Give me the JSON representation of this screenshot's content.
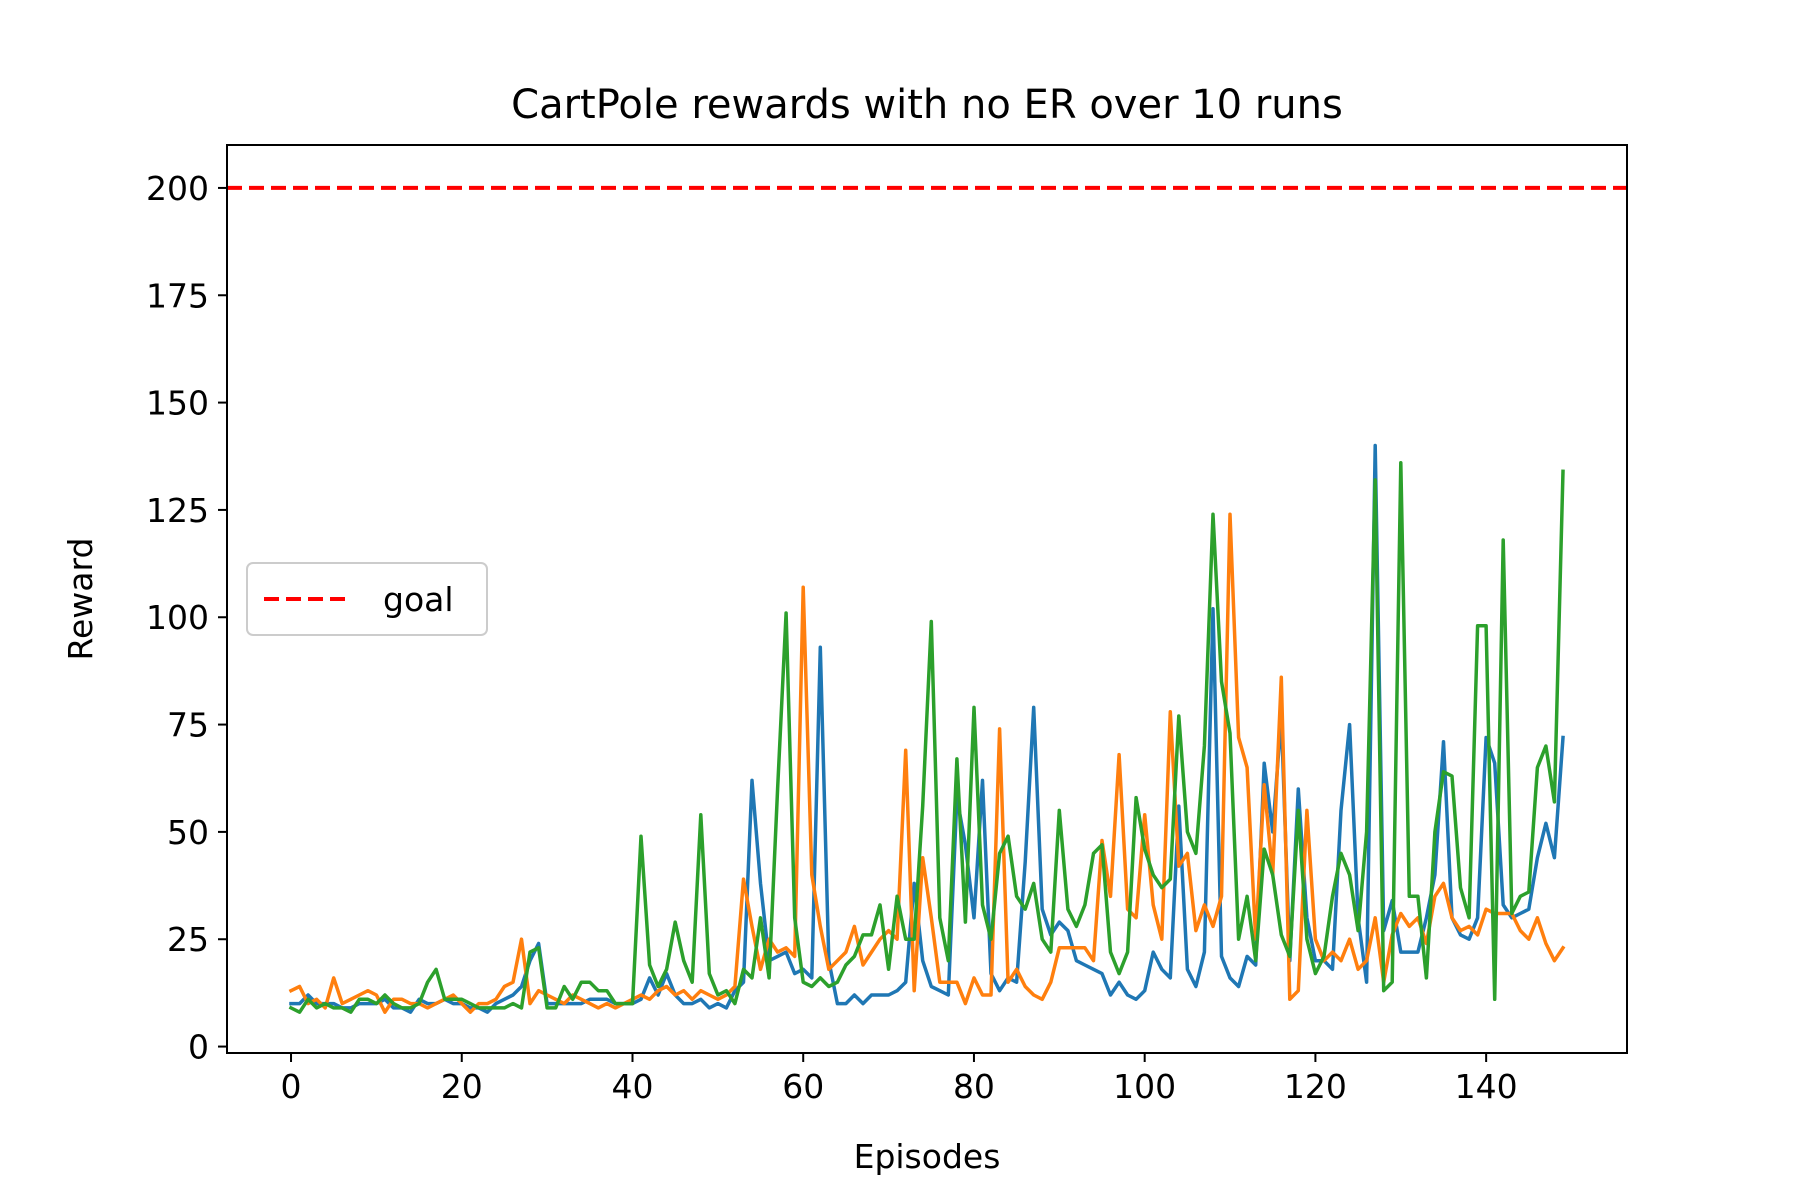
{
  "chart_data": {
    "type": "line",
    "title": "CartPole rewards with no ER over 10 runs",
    "xlabel": "Episodes",
    "ylabel": "Reward",
    "xlim": [
      -7.5,
      156.5
    ],
    "ylim": [
      -1.5,
      210
    ],
    "xticks": [
      0,
      20,
      40,
      60,
      80,
      100,
      120,
      140
    ],
    "yticks": [
      0,
      25,
      50,
      75,
      100,
      125,
      150,
      175,
      200
    ],
    "grid": false,
    "legend": {
      "placement": "center-left",
      "entries": [
        {
          "name": "goal",
          "style": "dashed",
          "color": "#ff0000"
        }
      ]
    },
    "goal_line": {
      "y": 200,
      "color": "#ff0000",
      "style": "dashed"
    },
    "series": [
      {
        "color": "#1f77b4",
        "x": [
          0,
          1,
          2,
          3,
          4,
          5,
          6,
          7,
          8,
          9,
          10,
          11,
          12,
          13,
          14,
          15,
          16,
          17,
          18,
          19,
          20,
          21,
          22,
          23,
          24,
          25,
          26,
          27,
          28,
          29,
          30,
          31,
          32,
          33,
          34,
          35,
          36,
          37,
          38,
          39,
          40,
          41,
          42,
          43,
          44,
          45,
          46,
          47,
          48,
          49,
          50,
          51,
          52,
          53,
          54,
          55,
          56,
          57,
          58,
          59,
          60,
          61,
          62,
          63,
          64,
          65,
          66,
          67,
          68,
          69,
          70,
          71,
          72,
          73,
          74,
          75,
          76,
          77,
          78,
          79,
          80,
          81,
          82,
          83,
          84,
          85,
          86,
          87,
          88,
          89,
          90,
          91,
          92,
          93,
          94,
          95,
          96,
          97,
          98,
          99,
          100,
          101,
          102,
          103,
          104,
          105,
          106,
          107,
          108,
          109,
          110,
          111,
          112,
          113,
          114,
          115,
          116,
          117,
          118,
          119,
          120,
          121,
          122,
          123,
          124,
          125,
          126,
          127,
          128,
          129,
          130,
          131,
          132,
          133,
          134,
          135,
          136,
          137,
          138,
          139,
          140,
          141,
          142,
          143,
          144,
          145,
          146,
          147,
          148,
          149
        ],
        "y": [
          10,
          10,
          12,
          10,
          10,
          10,
          9,
          9,
          10,
          10,
          10,
          11,
          9,
          9,
          8,
          11,
          10,
          10,
          11,
          10,
          10,
          9,
          9,
          8,
          10,
          11,
          12,
          14,
          20,
          24,
          10,
          10,
          10,
          10,
          10,
          11,
          11,
          11,
          10,
          10,
          10,
          11,
          16,
          12,
          17,
          12,
          10,
          10,
          11,
          9,
          10,
          9,
          13,
          15,
          62,
          38,
          20,
          21,
          22,
          17,
          18,
          16,
          93,
          20,
          10,
          10,
          12,
          10,
          12,
          12,
          12,
          13,
          15,
          38,
          20,
          14,
          13,
          12,
          58,
          47,
          30,
          62,
          17,
          13,
          16,
          15,
          43,
          79,
          32,
          26,
          29,
          27,
          20,
          19,
          18,
          17,
          12,
          15,
          12,
          11,
          13,
          22,
          18,
          16,
          56,
          18,
          14,
          22,
          102,
          21,
          16,
          14,
          21,
          19,
          66,
          50,
          77,
          20,
          60,
          30,
          20,
          20,
          18,
          55,
          75,
          30,
          15,
          140,
          27,
          34,
          22,
          22,
          22,
          30,
          40,
          71,
          30,
          26,
          25,
          30,
          72,
          66,
          33,
          30,
          31,
          32,
          44,
          52,
          44,
          72
        ]
      },
      {
        "color": "#ff7f0e",
        "x": [
          0,
          1,
          2,
          3,
          4,
          5,
          6,
          7,
          8,
          9,
          10,
          11,
          12,
          13,
          14,
          15,
          16,
          17,
          18,
          19,
          20,
          21,
          22,
          23,
          24,
          25,
          26,
          27,
          28,
          29,
          30,
          31,
          32,
          33,
          34,
          35,
          36,
          37,
          38,
          39,
          40,
          41,
          42,
          43,
          44,
          45,
          46,
          47,
          48,
          49,
          50,
          51,
          52,
          53,
          54,
          55,
          56,
          57,
          58,
          59,
          60,
          61,
          62,
          63,
          64,
          65,
          66,
          67,
          68,
          69,
          70,
          71,
          72,
          73,
          74,
          75,
          76,
          77,
          78,
          79,
          80,
          81,
          82,
          83,
          84,
          85,
          86,
          87,
          88,
          89,
          90,
          91,
          92,
          93,
          94,
          95,
          96,
          97,
          98,
          99,
          100,
          101,
          102,
          103,
          104,
          105,
          106,
          107,
          108,
          109,
          110,
          111,
          112,
          113,
          114,
          115,
          116,
          117,
          118,
          119,
          120,
          121,
          122,
          123,
          124,
          125,
          126,
          127,
          128,
          129,
          130,
          131,
          132,
          133,
          134,
          135,
          136,
          137,
          138,
          139,
          140,
          141,
          142,
          143,
          144,
          145,
          146,
          147,
          148,
          149
        ],
        "y": [
          13,
          14,
          10,
          11,
          9,
          16,
          10,
          11,
          12,
          13,
          12,
          8,
          11,
          11,
          10,
          10,
          9,
          10,
          11,
          12,
          10,
          8,
          10,
          10,
          11,
          14,
          15,
          25,
          10,
          13,
          12,
          11,
          10,
          12,
          11,
          10,
          9,
          10,
          9,
          10,
          11,
          12,
          11,
          13,
          14,
          12,
          13,
          11,
          13,
          12,
          11,
          12,
          14,
          39,
          28,
          18,
          25,
          22,
          23,
          21,
          107,
          40,
          28,
          18,
          20,
          22,
          28,
          19,
          22,
          25,
          27,
          25,
          69,
          13,
          44,
          30,
          15,
          15,
          15,
          10,
          16,
          12,
          12,
          74,
          15,
          18,
          14,
          12,
          11,
          15,
          23,
          23,
          23,
          23,
          20,
          48,
          35,
          68,
          32,
          30,
          54,
          33,
          25,
          78,
          42,
          45,
          27,
          33,
          28,
          35,
          124,
          72,
          65,
          25,
          61,
          40,
          86,
          11,
          13,
          55,
          25,
          20,
          22,
          20,
          25,
          18,
          20,
          30,
          15,
          26,
          31,
          28,
          30,
          24,
          35,
          38,
          30,
          27,
          28,
          26,
          32,
          31,
          31,
          31,
          27,
          25,
          30,
          24,
          20,
          23
        ]
      },
      {
        "color": "#2ca02c",
        "x": [
          0,
          1,
          2,
          3,
          4,
          5,
          6,
          7,
          8,
          9,
          10,
          11,
          12,
          13,
          14,
          15,
          16,
          17,
          18,
          19,
          20,
          21,
          22,
          23,
          24,
          25,
          26,
          27,
          28,
          29,
          30,
          31,
          32,
          33,
          34,
          35,
          36,
          37,
          38,
          39,
          40,
          41,
          42,
          43,
          44,
          45,
          46,
          47,
          48,
          49,
          50,
          51,
          52,
          53,
          54,
          55,
          56,
          57,
          58,
          59,
          60,
          61,
          62,
          63,
          64,
          65,
          66,
          67,
          68,
          69,
          70,
          71,
          72,
          73,
          74,
          75,
          76,
          77,
          78,
          79,
          80,
          81,
          82,
          83,
          84,
          85,
          86,
          87,
          88,
          89,
          90,
          91,
          92,
          93,
          94,
          95,
          96,
          97,
          98,
          99,
          100,
          101,
          102,
          103,
          104,
          105,
          106,
          107,
          108,
          109,
          110,
          111,
          112,
          113,
          114,
          115,
          116,
          117,
          118,
          119,
          120,
          121,
          122,
          123,
          124,
          125,
          126,
          127,
          128,
          129,
          130,
          131,
          132,
          133,
          134,
          135,
          136,
          137,
          138,
          139,
          140,
          141,
          142,
          143,
          144,
          145,
          146,
          147,
          148,
          149
        ],
        "y": [
          9,
          8,
          11,
          9,
          10,
          9,
          9,
          8,
          11,
          11,
          10,
          12,
          10,
          9,
          9,
          10,
          15,
          18,
          11,
          11,
          11,
          10,
          9,
          9,
          9,
          9,
          10,
          9,
          22,
          23,
          9,
          9,
          14,
          11,
          15,
          15,
          13,
          13,
          10,
          10,
          10,
          49,
          19,
          14,
          18,
          29,
          20,
          15,
          54,
          17,
          12,
          13,
          10,
          18,
          16,
          30,
          16,
          60,
          101,
          30,
          15,
          14,
          16,
          14,
          15,
          19,
          21,
          26,
          26,
          33,
          18,
          35,
          25,
          25,
          56,
          99,
          30,
          20,
          67,
          29,
          79,
          33,
          25,
          45,
          49,
          35,
          32,
          38,
          25,
          22,
          55,
          32,
          28,
          33,
          45,
          47,
          22,
          17,
          22,
          58,
          46,
          40,
          37,
          39,
          77,
          50,
          45,
          70,
          124,
          85,
          73,
          25,
          35,
          20,
          46,
          40,
          26,
          21,
          55,
          25,
          17,
          21,
          35,
          45,
          40,
          27,
          50,
          132,
          13,
          15,
          136,
          35,
          35,
          16,
          50,
          64,
          63,
          37,
          30,
          98,
          98,
          11,
          118,
          31,
          35,
          36,
          65,
          70,
          57,
          134
        ]
      }
    ]
  }
}
